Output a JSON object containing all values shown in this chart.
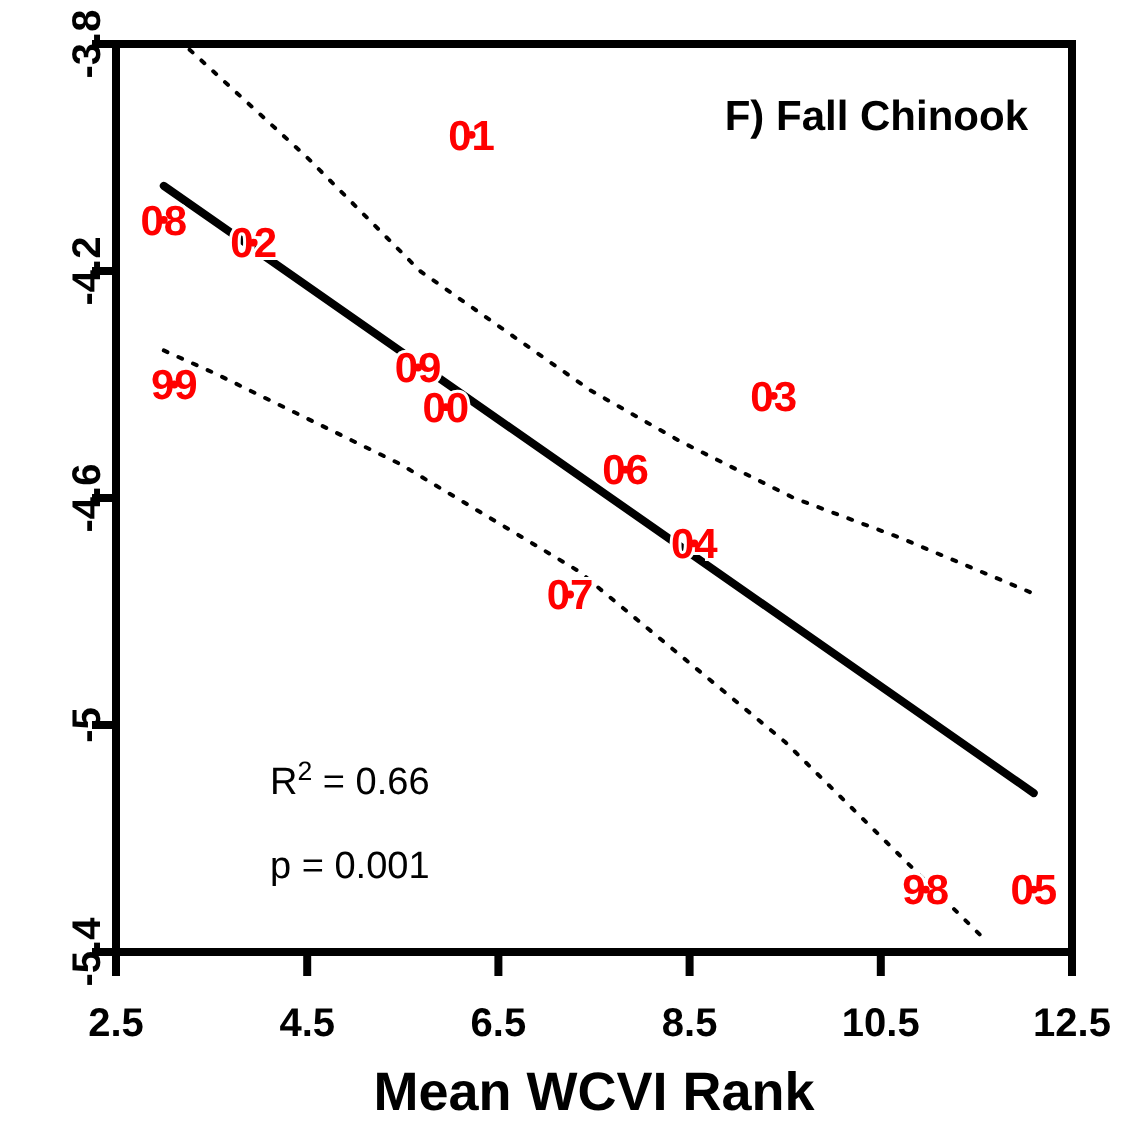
{
  "chart_data": {
    "type": "line",
    "title": "F) Fall Chinook",
    "xlabel": "Mean WCVI Rank",
    "xlim": [
      2.5,
      12.5
    ],
    "xticks": [
      2.5,
      4.5,
      6.5,
      8.5,
      10.5,
      12.5
    ],
    "ylim": [
      -5.4,
      -3.8
    ],
    "yticks": [
      -5.4,
      -5,
      -4.6,
      -4.2,
      -3.8
    ],
    "series": [
      {
        "type": "scatter",
        "color": "#ff0000",
        "x": [
          6.22,
          3.0,
          3.94,
          3.11,
          5.66,
          5.95,
          9.38,
          7.83,
          8.55,
          7.25,
          10.97,
          12.1
        ],
        "values": [
          -3.96,
          -4.11,
          -4.15,
          -4.4,
          -4.37,
          -4.44,
          -4.42,
          -4.55,
          -4.68,
          -4.77,
          -5.29,
          -5.29
        ]
      },
      {
        "color": "#000000",
        "line_style": "solid",
        "x": [
          3.0,
          12.1
        ],
        "values": [
          -4.05,
          -5.12
        ]
      },
      {
        "color": "#000000",
        "line_style": "dotted",
        "x": [
          3.27,
          4.5,
          5.68,
          7.46,
          8.4,
          9.59,
          10.7,
          12.12
        ],
        "values": [
          -3.81,
          -4.0,
          -4.2,
          -4.41,
          -4.5,
          -4.6,
          -4.67,
          -4.77
        ]
      },
      {
        "color": "#000000",
        "line_style": "dotted",
        "x": [
          3.0,
          3.53,
          5.47,
          7.35,
          7.56,
          9.5,
          10.7,
          11.6
        ],
        "values": [
          -4.34,
          -4.38,
          -4.54,
          -4.73,
          -4.76,
          -5.03,
          -5.23,
          -5.38
        ]
      }
    ],
    "annotations": [
      {
        "text": "01",
        "x": 6.22,
        "y": -3.96
      },
      {
        "text": "08",
        "x": 3.0,
        "y": -4.11
      },
      {
        "text": "02",
        "x": 3.94,
        "y": -4.15
      },
      {
        "text": "99",
        "x": 3.11,
        "y": -4.4
      },
      {
        "text": "09",
        "x": 5.66,
        "y": -4.37
      },
      {
        "text": "00",
        "x": 5.95,
        "y": -4.44
      },
      {
        "text": "03",
        "x": 9.38,
        "y": -4.42
      },
      {
        "text": "06",
        "x": 7.83,
        "y": -4.55
      },
      {
        "text": "04",
        "x": 8.55,
        "y": -4.68
      },
      {
        "text": "07",
        "x": 7.25,
        "y": -4.77
      },
      {
        "text": "98",
        "x": 10.97,
        "y": -5.29
      },
      {
        "text": "05",
        "x": 12.1,
        "y": -5.29
      },
      "R$^{2}$ = 0.66",
      "p = 0.001"
    ]
  }
}
